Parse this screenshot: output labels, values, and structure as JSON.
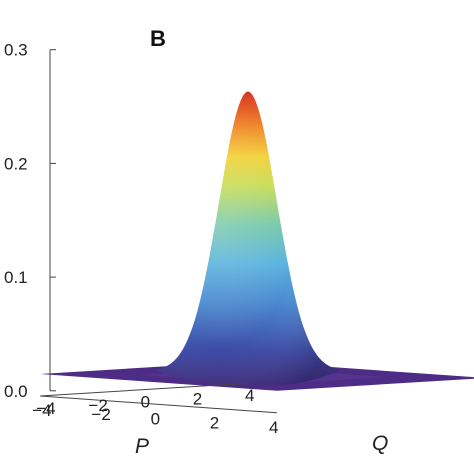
{
  "panel_label": "B",
  "chart_data": {
    "type": "surface",
    "function": "gaussian",
    "peak": 0.245,
    "sigma": 1.0,
    "center": [
      0,
      0
    ],
    "zlim": [
      0,
      0.3
    ],
    "z_ticks": [
      "0.0",
      "0.1",
      "0.2",
      "0.3"
    ],
    "z_tick_values": [
      0,
      0.1,
      0.2,
      0.3
    ],
    "p_ticks": [
      "−4",
      "−2",
      "0",
      "2",
      "4"
    ],
    "q_ticks": [
      "−4",
      "−2",
      "0",
      "2",
      "4"
    ],
    "p_tick_values": [
      -4,
      -2,
      0,
      2,
      4
    ],
    "q_tick_values": [
      -4,
      -2,
      0,
      2,
      4
    ],
    "xlabel": "P",
    "ylabel": "Q",
    "range": [
      -4,
      4
    ],
    "floor_color": "#4d2c86",
    "colormap": "rainbow"
  }
}
